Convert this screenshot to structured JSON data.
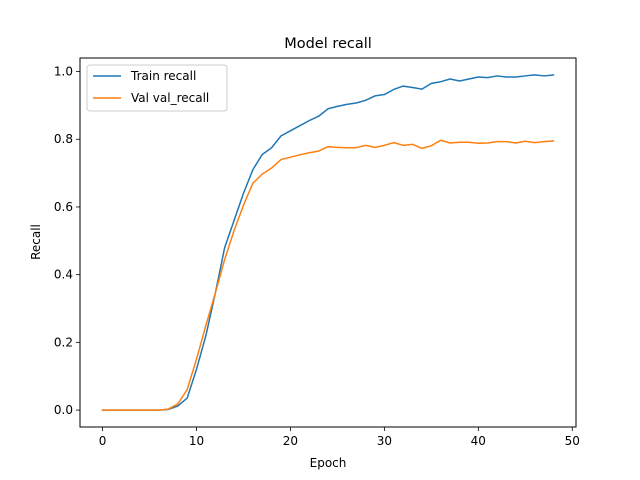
{
  "chart_data": {
    "type": "line",
    "title": "Model recall",
    "xlabel": "Epoch",
    "ylabel": "Recall",
    "xlim": [
      -2.4,
      50.4
    ],
    "ylim": [
      -0.05,
      1.04
    ],
    "xticks": [
      0,
      10,
      20,
      30,
      40,
      50
    ],
    "yticks": [
      0.0,
      0.2,
      0.4,
      0.6,
      0.8,
      1.0
    ],
    "xtick_labels": [
      "0",
      "10",
      "20",
      "30",
      "40",
      "50"
    ],
    "ytick_labels": [
      "0.0",
      "0.2",
      "0.4",
      "0.6",
      "0.8",
      "1.0"
    ],
    "legend_position": "top-left",
    "grid": false,
    "x": [
      0,
      1,
      2,
      3,
      4,
      5,
      6,
      7,
      8,
      9,
      10,
      11,
      12,
      13,
      14,
      15,
      16,
      17,
      18,
      19,
      20,
      21,
      22,
      23,
      24,
      25,
      26,
      27,
      28,
      29,
      30,
      31,
      32,
      33,
      34,
      35,
      36,
      37,
      38,
      39,
      40,
      41,
      42,
      43,
      44,
      45,
      46,
      47,
      48
    ],
    "series": [
      {
        "name": "Train recall",
        "color": "#1f77b4",
        "values": [
          0.0,
          0.0,
          0.0,
          0.0,
          0.0,
          0.0,
          0.0,
          0.002,
          0.012,
          0.035,
          0.12,
          0.22,
          0.345,
          0.48,
          0.56,
          0.64,
          0.71,
          0.755,
          0.775,
          0.81,
          0.825,
          0.84,
          0.855,
          0.868,
          0.89,
          0.897,
          0.903,
          0.907,
          0.915,
          0.928,
          0.932,
          0.947,
          0.957,
          0.953,
          0.948,
          0.965,
          0.97,
          0.978,
          0.972,
          0.978,
          0.984,
          0.982,
          0.987,
          0.984,
          0.984,
          0.987,
          0.99,
          0.987,
          0.99
        ]
      },
      {
        "name": "Val val_recall",
        "color": "#ff7f0e",
        "values": [
          0.0,
          0.0,
          0.0,
          0.0,
          0.0,
          0.0,
          0.0,
          0.003,
          0.018,
          0.06,
          0.15,
          0.25,
          0.345,
          0.445,
          0.53,
          0.605,
          0.67,
          0.697,
          0.715,
          0.74,
          0.747,
          0.754,
          0.76,
          0.765,
          0.778,
          0.776,
          0.775,
          0.775,
          0.782,
          0.776,
          0.782,
          0.79,
          0.782,
          0.785,
          0.773,
          0.781,
          0.797,
          0.789,
          0.791,
          0.791,
          0.788,
          0.789,
          0.793,
          0.793,
          0.789,
          0.794,
          0.79,
          0.793,
          0.795
        ]
      }
    ]
  }
}
